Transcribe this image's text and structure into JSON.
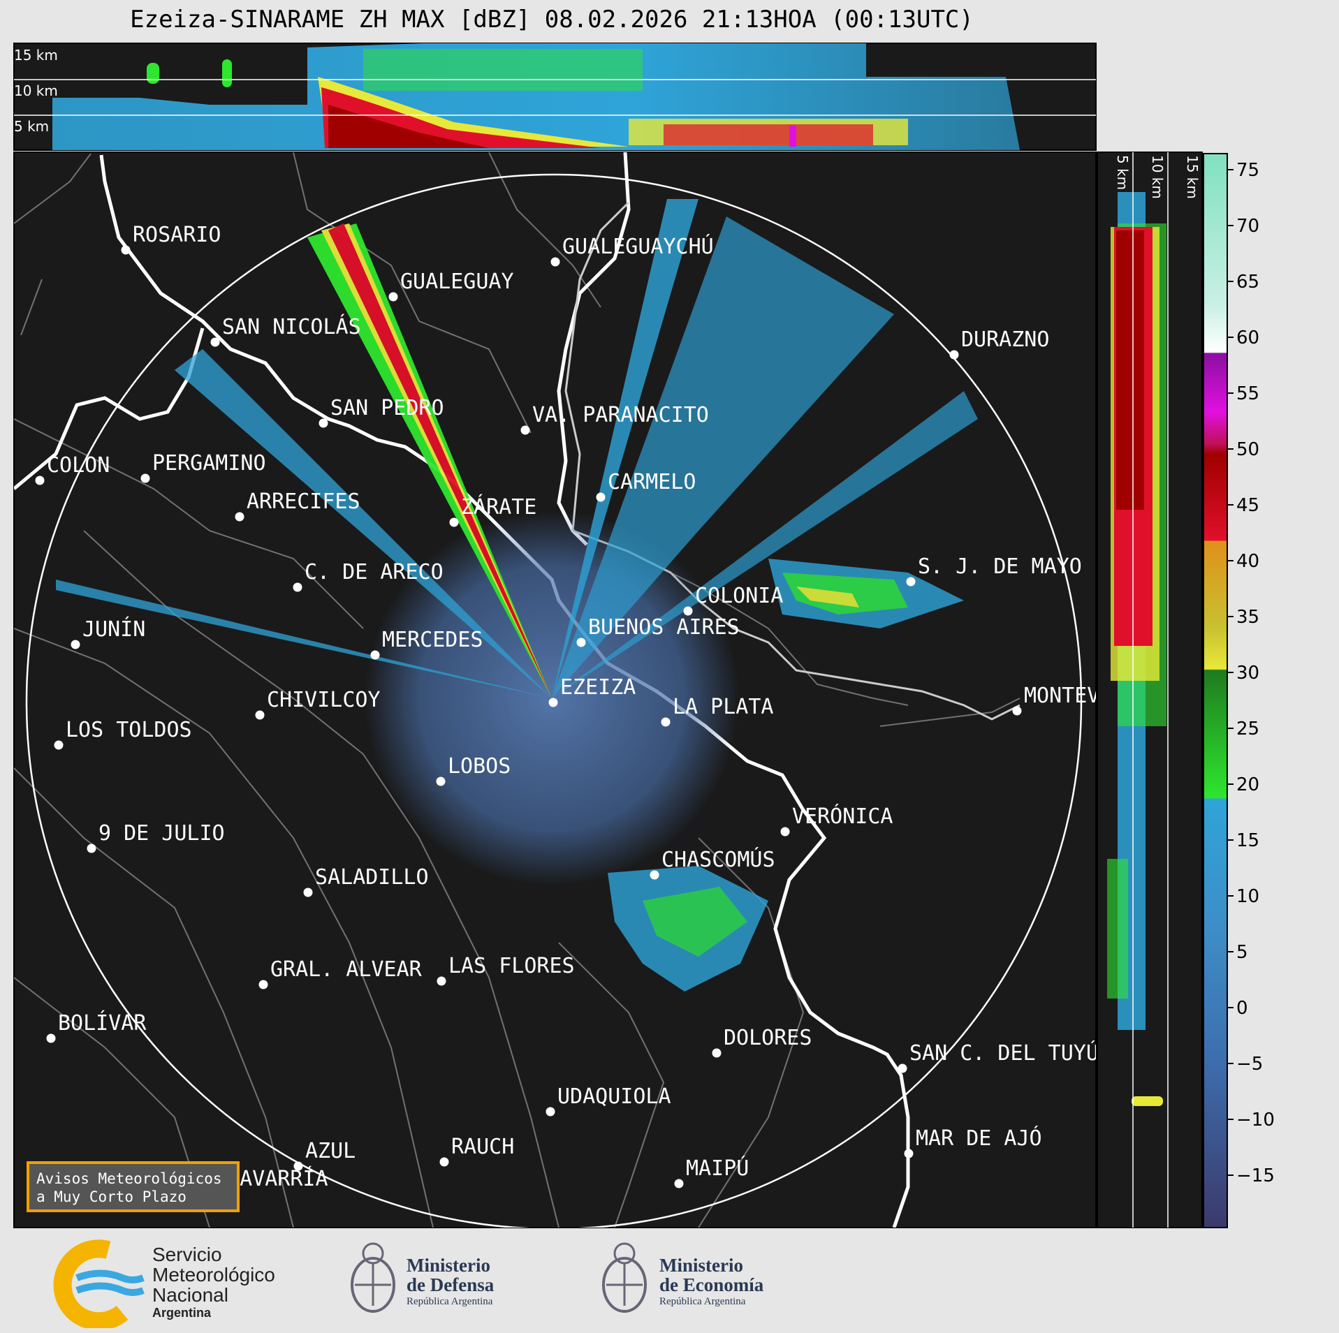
{
  "title": "Ezeiza-SINARAME ZH MAX [dBZ] 08.02.2026 21:13HOA (00:13UTC)",
  "top_profile": {
    "km_labels": [
      "15 km",
      "10 km",
      "5 km"
    ]
  },
  "side_profile": {
    "km_labels": [
      "5 km",
      "10 km",
      "15 km"
    ]
  },
  "cities": [
    {
      "name": "ROSARIO",
      "lbl": "ROSARIO"
    },
    {
      "name": "GUALEGUAYCHU",
      "lbl": "GUALEGUAYCHÚ"
    },
    {
      "name": "GUALEGUAY",
      "lbl": "GUALEGUAY"
    },
    {
      "name": "SAN_NICOLAS",
      "lbl": "SAN NICOLÁS"
    },
    {
      "name": "DURAZNO",
      "lbl": "DURAZNO"
    },
    {
      "name": "SAN_PEDRO",
      "lbl": "SAN PEDRO"
    },
    {
      "name": "VA_PARANACITO",
      "lbl": "VA. PARANACITO"
    },
    {
      "name": "COLON",
      "lbl": "COLON"
    },
    {
      "name": "PERGAMINO",
      "lbl": "PERGAMINO"
    },
    {
      "name": "CARMELO",
      "lbl": "CARMELO"
    },
    {
      "name": "ARRECIFES",
      "lbl": "ARRECIFES"
    },
    {
      "name": "ZARATE",
      "lbl": "ZÁRATE"
    },
    {
      "name": "C_DE_ARECO",
      "lbl": "C. DE ARECO"
    },
    {
      "name": "SJ_DE_MAYO",
      "lbl": "S. J. DE MAYO"
    },
    {
      "name": "COLONIA",
      "lbl": "COLONIA"
    },
    {
      "name": "JUNIN",
      "lbl": "JUNÍN"
    },
    {
      "name": "BUENOS_AIRES",
      "lbl": "BUENOS AIRES"
    },
    {
      "name": "MERCEDES",
      "lbl": "MERCEDES"
    },
    {
      "name": "EZEIZA",
      "lbl": "EZEIZA"
    },
    {
      "name": "MONTEVIDEO",
      "lbl": "MONTEV"
    },
    {
      "name": "CHIVILCOY",
      "lbl": "CHIVILCOY"
    },
    {
      "name": "LA_PLATA",
      "lbl": "LA PLATA"
    },
    {
      "name": "LOS_TOLDOS",
      "lbl": "LOS TOLDOS"
    },
    {
      "name": "LOBOS",
      "lbl": "LOBOS"
    },
    {
      "name": "VERONICA",
      "lbl": "VERÓNICA"
    },
    {
      "name": "9_DE_JULIO",
      "lbl": "9 DE JULIO"
    },
    {
      "name": "CHASCOMUS",
      "lbl": "CHASCOMÚS"
    },
    {
      "name": "SALADILLO",
      "lbl": "SALADILLO"
    },
    {
      "name": "GRAL_ALVEAR",
      "lbl": "GRAL. ALVEAR"
    },
    {
      "name": "LAS_FLORES",
      "lbl": "LAS FLORES"
    },
    {
      "name": "BOLIVAR",
      "lbl": "BOLÍVAR"
    },
    {
      "name": "DOLORES",
      "lbl": "DOLORES"
    },
    {
      "name": "SAN_C_DEL_TUYU",
      "lbl": "SAN C. DEL TUYÚ"
    },
    {
      "name": "UDAQUIOLA",
      "lbl": "UDAQUIOLA"
    },
    {
      "name": "RAUCH",
      "lbl": "RAUCH"
    },
    {
      "name": "MAR_DE_AJO",
      "lbl": "MAR DE AJÓ"
    },
    {
      "name": "AZUL",
      "lbl": "AZUL"
    },
    {
      "name": "OLAVARRIA",
      "lbl": "OLAVARRÍA"
    },
    {
      "name": "MAIPU",
      "lbl": "MAIPÚ"
    }
  ],
  "colorbar": {
    "ticks": [
      "75",
      "70",
      "65",
      "60",
      "55",
      "50",
      "45",
      "40",
      "35",
      "30",
      "25",
      "20",
      "15",
      "10",
      "5",
      "0",
      "−5",
      "−10",
      "−15"
    ],
    "colors": {
      "dark_blue": "#3b3a6a",
      "mid_blue": "#3d6fb0",
      "light_blue": "#2fa4d8",
      "green": "#2ee62e",
      "dark_green": "#1f7a1f",
      "yellow": "#e8e83a",
      "orange": "#e0901a",
      "red": "#e0102a",
      "dark_red": "#a00000",
      "magenta": "#e010e0",
      "purple": "#8a10a0",
      "white": "#ffffff",
      "mint": "#80e0c0"
    }
  },
  "button": {
    "line1": "Avisos Meteorológicos",
    "line2": "a Muy Corto Plazo"
  },
  "logos": {
    "smn": {
      "line1": "Servicio",
      "line2": "Meteorológico",
      "line3": "Nacional",
      "line4": "Argentina"
    },
    "defensa": {
      "line1": "Ministerio",
      "line2": "de Defensa",
      "line3": "República Argentina"
    },
    "economia": {
      "line1": "Ministerio",
      "line2": "de Economía",
      "line3": "República Argentina"
    }
  }
}
